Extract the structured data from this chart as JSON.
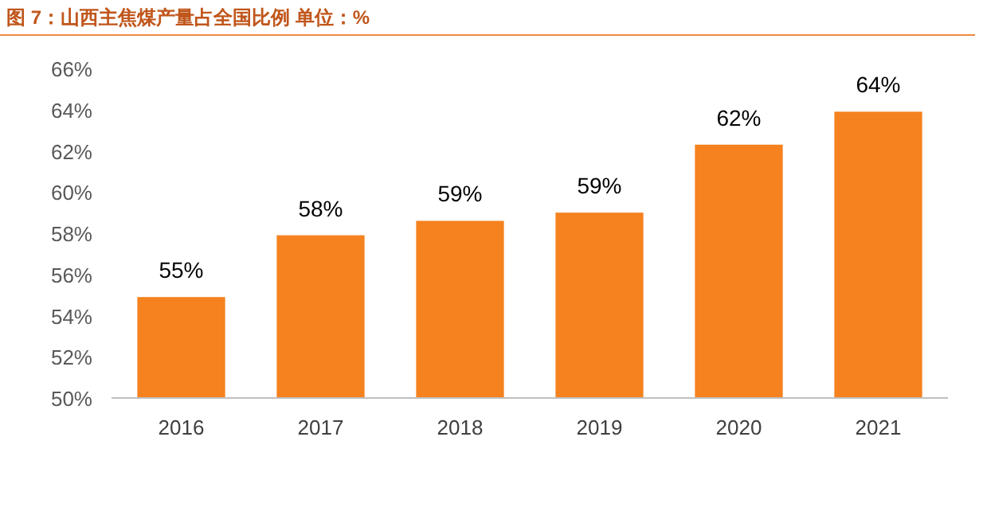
{
  "chart_data": {
    "type": "bar",
    "title": "图 7：山西主焦煤产量占全国比例  单位：%",
    "categories": [
      "2016",
      "2017",
      "2018",
      "2019",
      "2020",
      "2021"
    ],
    "values": [
      54.9,
      57.9,
      58.6,
      59.0,
      62.3,
      63.9
    ],
    "value_labels": [
      "55%",
      "58%",
      "59%",
      "59%",
      "62%",
      "64%"
    ],
    "color": "#f5821f",
    "ylim": [
      50,
      66
    ],
    "yticks": [
      {
        "value": 50,
        "label": "50%"
      },
      {
        "value": 52,
        "label": "52%"
      },
      {
        "value": 54,
        "label": "54%"
      },
      {
        "value": 56,
        "label": "56%"
      },
      {
        "value": 58,
        "label": "58%"
      },
      {
        "value": 60,
        "label": "60%"
      },
      {
        "value": 62,
        "label": "62%"
      },
      {
        "value": 64,
        "label": "64%"
      },
      {
        "value": 66,
        "label": "66%"
      }
    ],
    "grid": false
  }
}
